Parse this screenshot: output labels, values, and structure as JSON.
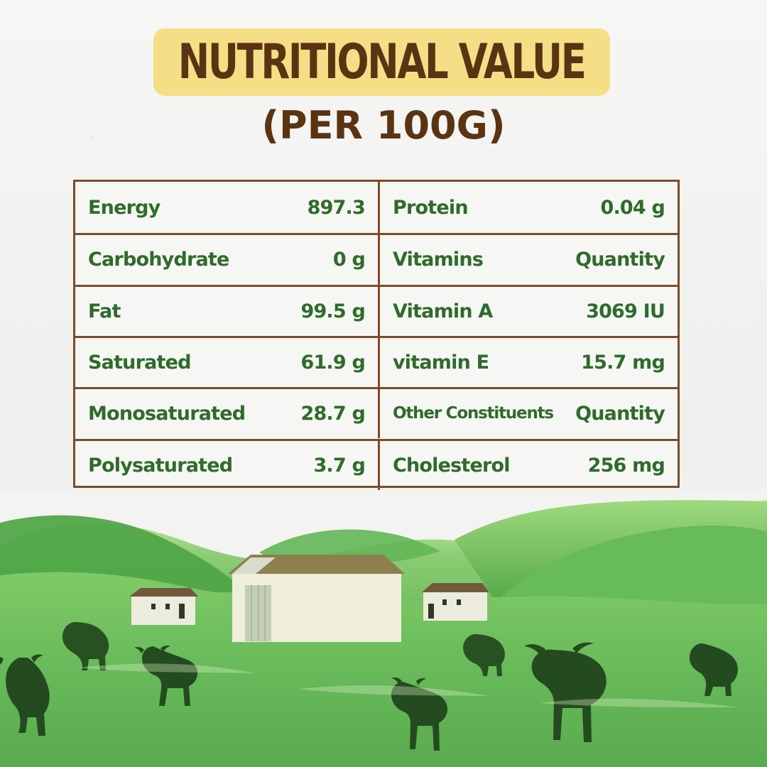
{
  "header": {
    "title": "NUTRITIONAL VALUE",
    "subtitle": "(PER 100G)"
  },
  "table": {
    "rows": [
      {
        "left_label": "Energy",
        "left_value": "897.3",
        "right_label": "Protein",
        "right_value": "0.04 g"
      },
      {
        "left_label": "Carbohydrate",
        "left_value": "0 g",
        "right_label": "Vitamins",
        "right_value": "Quantity"
      },
      {
        "left_label": "Fat",
        "left_value": "99.5 g",
        "right_label": "Vitamin A",
        "right_value": "3069 IU"
      },
      {
        "left_label": "Saturated",
        "left_value": "61.9 g",
        "right_label": "vitamin E",
        "right_value": "15.7 mg"
      },
      {
        "left_label": "Monosaturated",
        "left_value": "28.7 g",
        "right_label": "Other Constituents",
        "right_value": "Quantity"
      },
      {
        "left_label": "Polysaturated",
        "left_value": "3.7 g",
        "right_label": "Cholesterol",
        "right_value": "256 mg"
      }
    ]
  },
  "colors": {
    "title_bg": "#f4df86",
    "title_text": "#5a3412",
    "table_border": "#7b4c28",
    "table_text": "#2f6b2b",
    "hill_green": "#58b44f",
    "field_green": "#6cbb59",
    "animal_silhouette": "#244b1f"
  },
  "illustration": {
    "icons": [
      "hills-illustration",
      "barn-illustration",
      "small-house-left-icon",
      "small-house-right-icon",
      "buffalo-silhouette-icon"
    ]
  }
}
